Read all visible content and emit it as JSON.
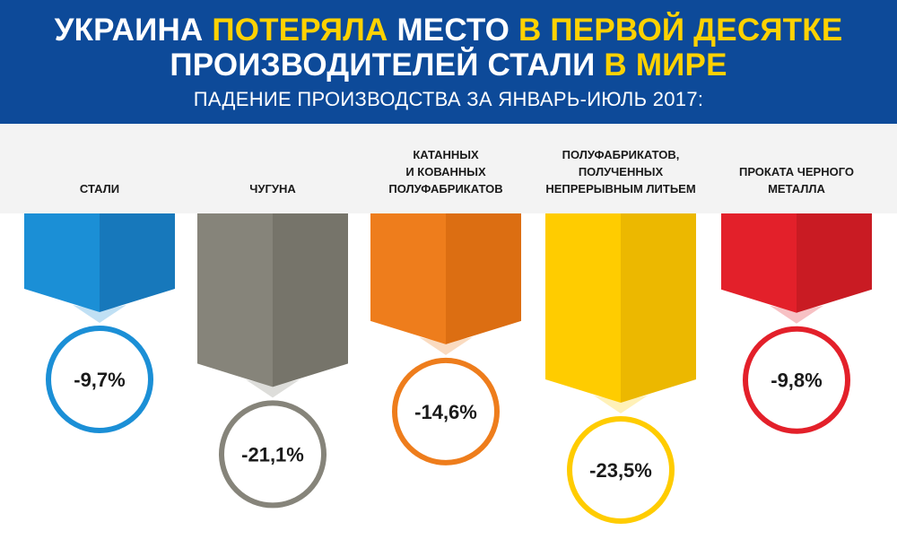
{
  "header": {
    "title_line1": [
      {
        "text": "УКРАИНА ",
        "highlight": false
      },
      {
        "text": "ПОТЕРЯЛА",
        "highlight": true
      },
      {
        "text": " МЕСТО ",
        "highlight": false
      },
      {
        "text": "В ПЕРВОЙ ДЕСЯТКЕ",
        "highlight": true
      }
    ],
    "title_line2": [
      {
        "text": "ПРОИЗВОДИТЕЛЕЙ СТАЛИ ",
        "highlight": false
      },
      {
        "text": "В МИРЕ",
        "highlight": true
      }
    ],
    "subtitle": "ПАДЕНИЕ ПРОИЗВОДСТВА ЗА ЯНВАРЬ-ИЮЛЬ 2017:"
  },
  "colors": {
    "header_bg": "#0d4a99",
    "title_text": "#ffffff",
    "title_highlight": "#ffd200"
  },
  "chart_data": {
    "type": "bar",
    "orientation": "downward",
    "categories": [
      "СТАЛИ",
      "ЧУГУНА",
      "КАТАННЫХ\nИ КОВАННЫХ\nПОЛУФАБРИКАТОВ",
      "ПОЛУФАБРИКАТОВ,\nПОЛУЧЕННЫХ\nНЕПРЕРЫВНЫМ ЛИТЬЕМ",
      "ПРОКАТА ЧЕРНОГО\nМЕТАЛЛА"
    ],
    "values": [
      -9.7,
      -21.1,
      -14.6,
      -23.5,
      -9.8
    ],
    "value_labels": [
      "-9,7%",
      "-21,1%",
      "-14,6%",
      "-23,5%",
      "-9,8%"
    ],
    "colors": [
      "#1b8fd6",
      "#86847a",
      "#ee7d1c",
      "#ffcc00",
      "#e3202a"
    ],
    "shade_colors": [
      "#1778bb",
      "#76746a",
      "#dc6e12",
      "#ecb800",
      "#c91b23"
    ],
    "ylim": [
      -23.5,
      0
    ]
  }
}
